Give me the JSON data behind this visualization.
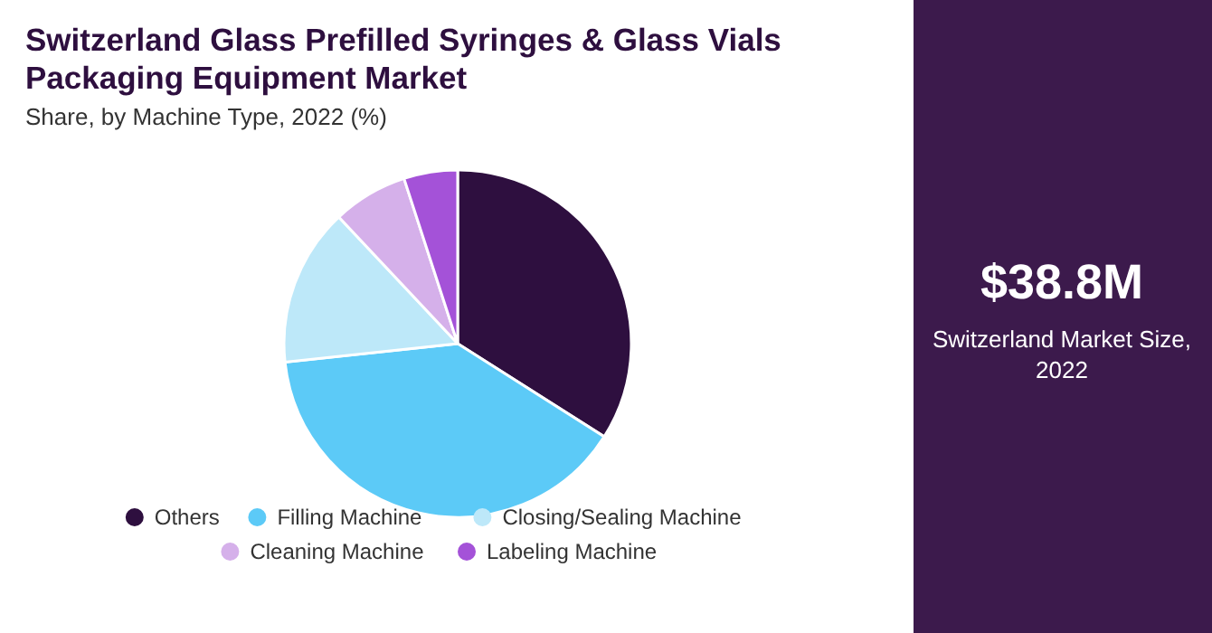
{
  "chart_data": {
    "type": "pie",
    "title": "Switzerland Glass Prefilled Syringes & Glass Vials Packaging Equipment Market",
    "subtitle": "Share, by Machine Type, 2022 (%)",
    "categories": [
      "Others",
      "Filling Machine",
      "Closing/Sealing Machine",
      "Cleaning Machine",
      "Labeling Machine"
    ],
    "values": [
      34,
      39.3,
      14.7,
      7,
      5
    ],
    "colors": [
      "#2e0f3f",
      "#5ccaf7",
      "#bde8f9",
      "#d5b0ea",
      "#a452d8"
    ],
    "legend": "bottom",
    "annotations": [
      "$38.8M",
      "Switzerland Market Size, 2022"
    ]
  }
}
